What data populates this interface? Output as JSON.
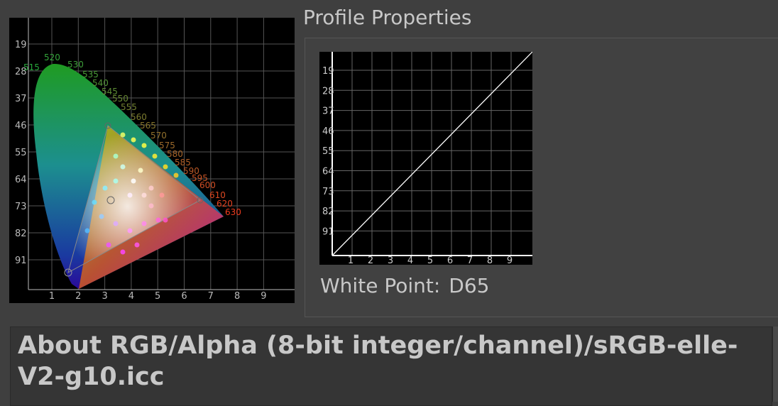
{
  "chromaticity": {
    "x_ticks": [
      1,
      2,
      3,
      4,
      5,
      6,
      7,
      8,
      9
    ],
    "y_ticks": [
      19,
      28,
      37,
      46,
      55,
      64,
      73,
      82,
      91
    ],
    "wavelengths": [
      "515",
      "520",
      "530",
      "535",
      "540",
      "545",
      "550",
      "555",
      "560",
      "565",
      "570",
      "575",
      "580",
      "585",
      "590",
      "595",
      "600",
      "610",
      "620",
      "630"
    ]
  },
  "profile_properties": {
    "title": "Profile Properties",
    "curve": {
      "x_ticks": [
        1,
        2,
        3,
        4,
        5,
        6,
        7,
        8,
        9
      ],
      "y_ticks": [
        19,
        28,
        37,
        46,
        55,
        64,
        73,
        82,
        91
      ]
    },
    "white_point_label": "White Point:",
    "white_point": "D65"
  },
  "about": "About RGB/Alpha (8-bit integer/channel)/sRGB-elle-V2-g10.icc"
}
